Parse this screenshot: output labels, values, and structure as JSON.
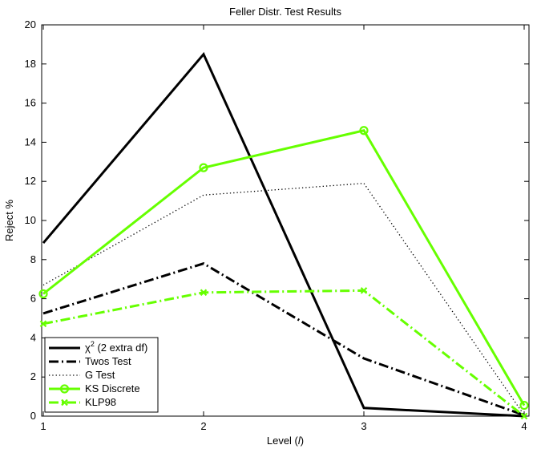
{
  "chart_data": {
    "type": "line",
    "title": "Feller Distr. Test Results",
    "xlabel_main": "Level (",
    "xlabel_var": "l",
    "xlabel_close": ")",
    "ylabel": "Reject %",
    "x": [
      1,
      2,
      3,
      4
    ],
    "xlim": [
      0.99,
      4.03
    ],
    "ylim": [
      0,
      20
    ],
    "xticks": [
      1,
      2,
      3,
      4
    ],
    "yticks": [
      0,
      2,
      4,
      6,
      8,
      10,
      12,
      14,
      16,
      18,
      20
    ],
    "grid": false,
    "legend_position": "bottom-left",
    "series": [
      {
        "name_main": "χ",
        "name_sup": "2",
        "name_rest": " (2 extra df)",
        "values": [
          8.85,
          18.5,
          0.42,
          0.0
        ],
        "color": "#000000",
        "dash": "solid",
        "width": 3,
        "marker": "none"
      },
      {
        "name": "Twos Test",
        "values": [
          5.25,
          7.8,
          2.95,
          0.05
        ],
        "color": "#000000",
        "dash": "dashdot",
        "width": 3,
        "marker": "none"
      },
      {
        "name": "G Test",
        "values": [
          6.7,
          11.3,
          11.9,
          0.05
        ],
        "color": "#000000",
        "dash": "dotted",
        "width": 1.3,
        "marker": "none"
      },
      {
        "name": "KS Discrete",
        "values": [
          6.25,
          12.7,
          14.6,
          0.55
        ],
        "color": "#66ff00",
        "dash": "solid",
        "width": 3,
        "marker": "circle"
      },
      {
        "name": "KLP98",
        "values": [
          4.72,
          6.32,
          6.42,
          0.0
        ],
        "color": "#66ff00",
        "dash": "dashdot",
        "width": 3,
        "marker": "x"
      }
    ]
  }
}
